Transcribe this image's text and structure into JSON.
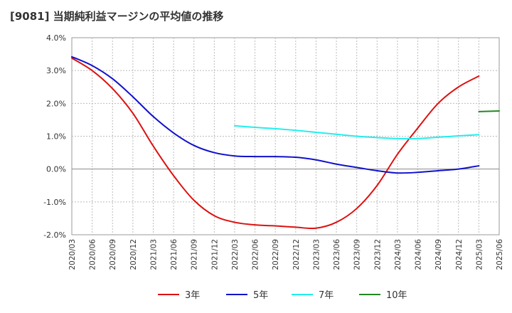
{
  "chart_data": {
    "type": "line",
    "title": "[9081]  当期純利益マージンの平均値の推移",
    "xlabel": "",
    "ylabel": "",
    "ylim": [
      -2.0,
      4.0
    ],
    "yticks": [
      "4.0%",
      "3.0%",
      "2.0%",
      "1.0%",
      "0.0%",
      "-1.0%",
      "-2.0%"
    ],
    "ytick_values": [
      4.0,
      3.0,
      2.0,
      1.0,
      0.0,
      -1.0,
      -2.0
    ],
    "x_labels": [
      "2020/03",
      "2020/06",
      "2020/09",
      "2020/12",
      "2021/03",
      "2021/06",
      "2021/09",
      "2021/12",
      "2022/03",
      "2022/06",
      "2022/09",
      "2022/12",
      "2023/03",
      "2023/06",
      "2023/09",
      "2023/12",
      "2024/03",
      "2024/06",
      "2024/09",
      "2024/12",
      "2025/03",
      "2025/06"
    ],
    "grid": true,
    "legend_position": "bottom",
    "series": [
      {
        "name": "3年",
        "color": "#dd1111",
        "start_index": 0,
        "values": [
          3.38,
          3.0,
          2.45,
          1.7,
          0.7,
          -0.2,
          -0.95,
          -1.42,
          -1.62,
          -1.7,
          -1.73,
          -1.77,
          -1.8,
          -1.62,
          -1.2,
          -0.5,
          0.45,
          1.25,
          2.0,
          2.5,
          2.83
        ]
      },
      {
        "name": "5年",
        "color": "#1111cc",
        "start_index": 0,
        "values": [
          3.42,
          3.15,
          2.75,
          2.2,
          1.6,
          1.1,
          0.72,
          0.5,
          0.4,
          0.38,
          0.38,
          0.36,
          0.28,
          0.15,
          0.05,
          -0.05,
          -0.12,
          -0.1,
          -0.05,
          0.0,
          0.1
        ]
      },
      {
        "name": "7年",
        "color": "#22eeee",
        "start_index": 8,
        "values": [
          1.32,
          1.27,
          1.23,
          1.18,
          1.12,
          1.06,
          1.0,
          0.96,
          0.93,
          0.93,
          0.97,
          1.01,
          1.05
        ]
      },
      {
        "name": "10年",
        "color": "#228822",
        "start_index": 20,
        "values": [
          1.75,
          1.77
        ]
      }
    ]
  }
}
